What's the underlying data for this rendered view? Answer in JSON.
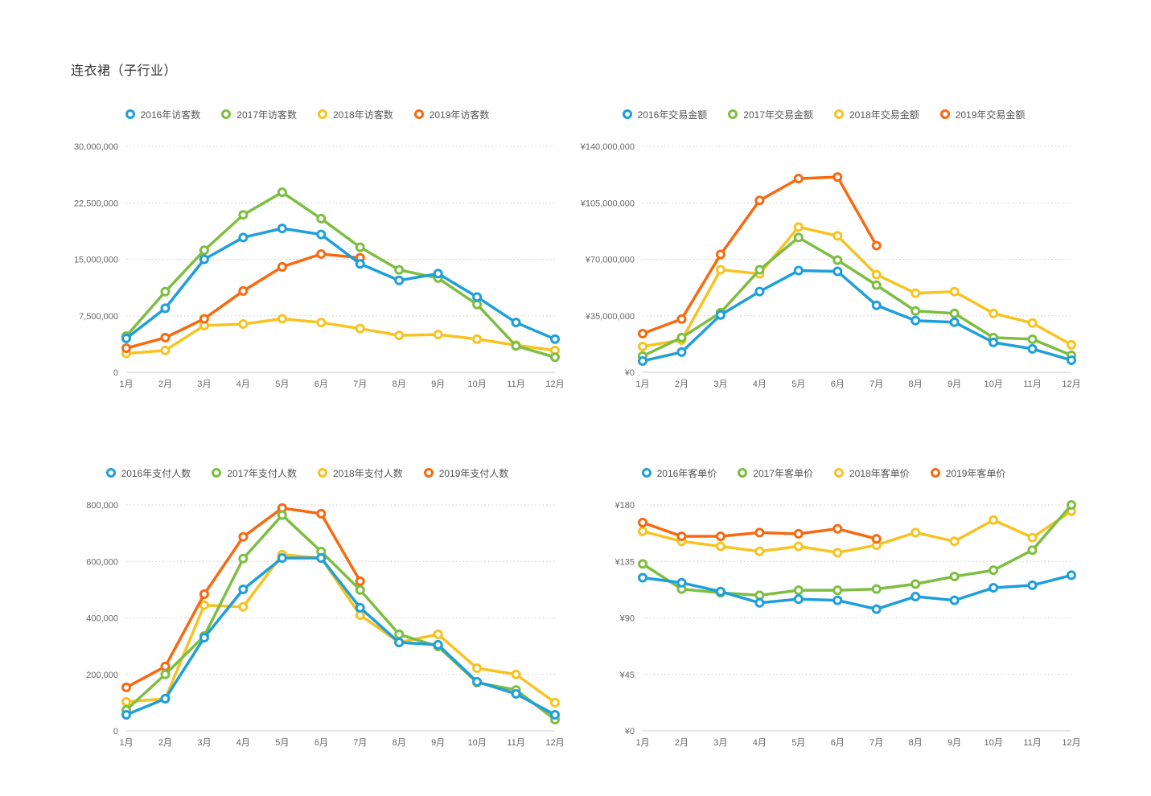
{
  "page": {
    "title": "连衣裙（子行业）"
  },
  "palette": {
    "y2016": "#1e9fdb",
    "y2017": "#7dbe41",
    "y2018": "#f7c321",
    "y2019": "#f8690f",
    "grid": "#cccccc",
    "axis_text": "#666666",
    "legend_text": "#555555",
    "title_text": "#333333"
  },
  "chart_data": [
    {
      "type": "line",
      "metric": "访客数",
      "categories": [
        "1月",
        "2月",
        "3月",
        "4月",
        "5月",
        "6月",
        "7月",
        "8月",
        "9月",
        "10月",
        "11月",
        "12月"
      ],
      "ylim": [
        0,
        30000000
      ],
      "ytick_labels": [
        "30,000,000",
        "22,500,000",
        "15,000,000",
        "7,500,000",
        "0"
      ],
      "grid": "dotted-horizontal",
      "legend_position": "top",
      "series": [
        {
          "name": "2016年访客数",
          "color": "#1e9fdb",
          "values": [
            4500000,
            8500000,
            15000000,
            17900000,
            19100000,
            18300000,
            14400000,
            12200000,
            13100000,
            10000000,
            6600000,
            4400000
          ]
        },
        {
          "name": "2017年访客数",
          "color": "#7dbe41",
          "values": [
            4800000,
            10700000,
            16200000,
            20900000,
            23900000,
            20400000,
            16600000,
            13600000,
            12500000,
            9000000,
            3500000,
            2000000
          ]
        },
        {
          "name": "2018年访客数",
          "color": "#f7c321",
          "values": [
            2500000,
            2900000,
            6200000,
            6400000,
            7100000,
            6600000,
            5800000,
            4900000,
            5000000,
            4400000,
            3600000,
            2900000
          ]
        },
        {
          "name": "2019年访客数",
          "color": "#f8690f",
          "values": [
            3200000,
            4600000,
            7100000,
            10800000,
            14000000,
            15700000,
            15200000
          ]
        }
      ]
    },
    {
      "type": "line",
      "metric": "交易金额",
      "categories": [
        "1月",
        "2月",
        "3月",
        "4月",
        "5月",
        "6月",
        "7月",
        "8月",
        "9月",
        "10月",
        "11月",
        "12月"
      ],
      "ylim": [
        0,
        140000000
      ],
      "ytick_labels": [
        "¥140,000,000",
        "¥105,000,000",
        "¥70,000,000",
        "¥35,000,000",
        "¥0"
      ],
      "grid": "dotted-horizontal",
      "legend_position": "top",
      "series": [
        {
          "name": "2016年交易金额",
          "color": "#1e9fdb",
          "values": [
            7000000,
            12500000,
            35500000,
            50000000,
            63000000,
            62500000,
            41500000,
            32000000,
            31000000,
            18500000,
            14500000,
            7500000
          ]
        },
        {
          "name": "2017年交易金额",
          "color": "#7dbe41",
          "values": [
            10000000,
            21500000,
            37000000,
            63500000,
            83500000,
            69500000,
            54000000,
            38000000,
            36500000,
            21500000,
            20500000,
            10500000
          ]
        },
        {
          "name": "2018年交易金额",
          "color": "#f7c321",
          "values": [
            16000000,
            20000000,
            63500000,
            61000000,
            90000000,
            84500000,
            60500000,
            49000000,
            50000000,
            36500000,
            30500000,
            17000000
          ]
        },
        {
          "name": "2019年交易金额",
          "color": "#f8690f",
          "values": [
            24000000,
            33000000,
            73000000,
            106500000,
            120000000,
            121000000,
            78500000
          ]
        }
      ]
    },
    {
      "type": "line",
      "metric": "支付人数",
      "categories": [
        "1月",
        "2月",
        "3月",
        "4月",
        "5月",
        "6月",
        "7月",
        "8月",
        "9月",
        "10月",
        "11月",
        "12月"
      ],
      "ylim": [
        0,
        800000
      ],
      "ytick_labels": [
        "800,000",
        "600,000",
        "400,000",
        "200,000",
        "0"
      ],
      "grid": "dotted-horizontal",
      "legend_position": "top",
      "series": [
        {
          "name": "2016年支付人数",
          "color": "#1e9fdb",
          "values": [
            57000,
            114000,
            330000,
            501000,
            612000,
            612000,
            436000,
            313000,
            305000,
            174000,
            131000,
            57000
          ]
        },
        {
          "name": "2017年支付人数",
          "color": "#7dbe41",
          "values": [
            74000,
            200000,
            336000,
            610000,
            764000,
            635000,
            499000,
            342000,
            299000,
            171000,
            145000,
            40000
          ]
        },
        {
          "name": "2018年支付人数",
          "color": "#f7c321",
          "values": [
            103000,
            114000,
            445000,
            439000,
            624000,
            612000,
            410000,
            313000,
            342000,
            222000,
            200000,
            100000
          ]
        },
        {
          "name": "2019年支付人数",
          "color": "#f8690f",
          "values": [
            154000,
            228000,
            484000,
            687000,
            789000,
            769000,
            530000
          ]
        }
      ]
    },
    {
      "type": "line",
      "metric": "客单价",
      "categories": [
        "1月",
        "2月",
        "3月",
        "4月",
        "5月",
        "6月",
        "7月",
        "8月",
        "9月",
        "10月",
        "11月",
        "12月"
      ],
      "ylim": [
        0,
        180
      ],
      "ytick_labels": [
        "¥180",
        "¥135",
        "¥90",
        "¥45",
        "¥0"
      ],
      "grid": "dotted-horizontal",
      "legend_position": "top",
      "series": [
        {
          "name": "2016年客单价",
          "color": "#1e9fdb",
          "values": [
            122,
            118,
            111,
            102,
            105,
            104,
            97,
            107,
            104,
            114,
            116,
            124
          ]
        },
        {
          "name": "2017年客单价",
          "color": "#7dbe41",
          "values": [
            133,
            113,
            110,
            108,
            112,
            112,
            113,
            117,
            123,
            128,
            144,
            180
          ]
        },
        {
          "name": "2018年客单价",
          "color": "#f7c321",
          "values": [
            159,
            151,
            147,
            143,
            147,
            142,
            148,
            158,
            151,
            168,
            154,
            175
          ]
        },
        {
          "name": "2019年客单价",
          "color": "#f8690f",
          "values": [
            166,
            155,
            155,
            158,
            157,
            161,
            153
          ]
        }
      ]
    }
  ]
}
